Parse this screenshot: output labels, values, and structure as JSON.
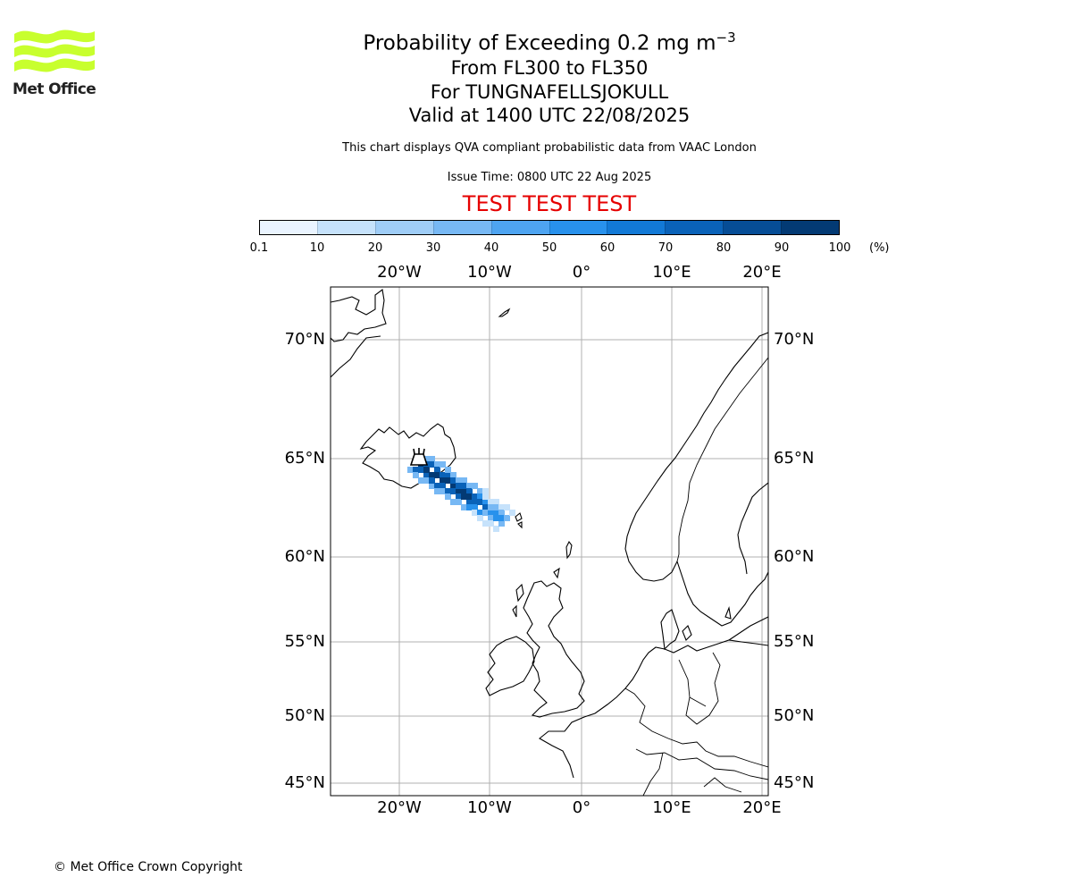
{
  "logo": {
    "name": "Met Office",
    "color": "#c8ff2e"
  },
  "header": {
    "title_main": "Probability of Exceeding 0.2 mg m",
    "title_exponent": "−3",
    "line_levels": "From FL300 to FL350",
    "line_volcano": "For TUNGNAFELLSJOKULL",
    "line_valid": "Valid at 1400 UTC 22/08/2025",
    "compliance_note": "This chart displays QVA compliant probabilistic data from VAAC London",
    "issue_time": "Issue Time: 0800 UTC 22 Aug 2025",
    "test_banner": "TEST TEST TEST"
  },
  "colorbar": {
    "unit": "(%)",
    "ticks": [
      "0.1",
      "10",
      "20",
      "30",
      "40",
      "50",
      "60",
      "70",
      "80",
      "90",
      "100"
    ],
    "colors": [
      "#eaf4ff",
      "#c6e2fb",
      "#9fcdf7",
      "#77b8f4",
      "#4ea4f1",
      "#2891ec",
      "#1279d6",
      "#0a62b8",
      "#064d96",
      "#033a74",
      "#022a55"
    ]
  },
  "map": {
    "lon_labels": [
      "20°W",
      "10°W",
      "0°",
      "10°E",
      "20°E"
    ],
    "lat_labels": [
      "70°N",
      "65°N",
      "60°N",
      "55°N",
      "50°N",
      "45°N"
    ],
    "volcano_icon": "volcano-icon",
    "plume_color": "#0a62b8"
  },
  "footer": {
    "copyright": "© Met Office Crown Copyright"
  }
}
